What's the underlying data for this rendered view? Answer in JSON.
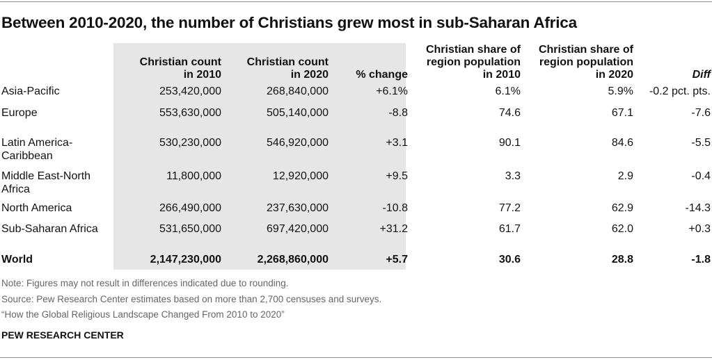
{
  "chart_data": {
    "type": "table",
    "title": "Between 2010-2020, the number of Christians grew most in sub-Saharan Africa",
    "columns": [
      "Christian count in 2010",
      "Christian count in 2020",
      "% change",
      "Christian share of region population in 2010",
      "Christian share of region population in 2020",
      "Diff"
    ],
    "header_lines": [
      [
        "Christian count",
        "in 2010"
      ],
      [
        "Christian count",
        "in 2020"
      ],
      [
        "% change"
      ],
      [
        "Christian share of",
        "region population",
        "in 2010"
      ],
      [
        "Christian share of",
        "region population",
        "in 2020"
      ],
      [
        "Diff"
      ]
    ],
    "rows": [
      {
        "region_lines": [
          "Asia-Pacific"
        ],
        "values": [
          "253,420,000",
          "268,840,000",
          "+6.1%",
          "6.1%",
          "5.9%",
          "-0.2 pct. pts."
        ]
      },
      {
        "region_lines": [
          "Europe"
        ],
        "values": [
          "553,630,000",
          "505,140,000",
          "-8.8",
          "74.6",
          "67.1",
          "-7.6"
        ]
      },
      {
        "region_lines": [
          "Latin America-",
          "Caribbean"
        ],
        "values": [
          "530,230,000",
          "546,920,000",
          "+3.1",
          "90.1",
          "84.6",
          "-5.5"
        ]
      },
      {
        "region_lines": [
          "Middle East-North",
          "Africa"
        ],
        "values": [
          "11,800,000",
          "12,920,000",
          "+9.5",
          "3.3",
          "2.9",
          "-0.4"
        ]
      },
      {
        "region_lines": [
          "North America"
        ],
        "values": [
          "266,490,000",
          "237,630,000",
          "-10.8",
          "77.2",
          "62.9",
          "-14.3"
        ]
      },
      {
        "region_lines": [
          "Sub-Saharan Africa"
        ],
        "values": [
          "531,650,000",
          "697,420,000",
          "+31.2",
          "61.7",
          "62.0",
          "+0.3"
        ]
      },
      {
        "region_lines": [
          "World"
        ],
        "values": [
          "2,147,230,000",
          "2,268,860,000",
          "+5.7",
          "30.6",
          "28.8",
          "-1.8"
        ],
        "bold": true
      }
    ],
    "notes": [
      "Note: Figures may not result in differences indicated due to rounding.",
      "Source: Pew Research Center estimates based on more than 2,700 censuses and surveys.",
      "“How the Global Religious Landscape Changed From 2010 to 2020”"
    ],
    "branding": "PEW RESEARCH CENTER",
    "shaded_columns": [
      0,
      1,
      2
    ],
    "shade_color": "#e6e6e6"
  }
}
